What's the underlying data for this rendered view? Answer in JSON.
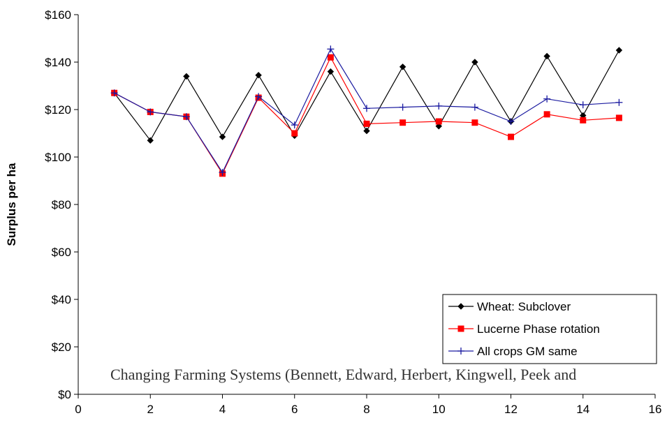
{
  "chart_data": {
    "type": "line",
    "title": "",
    "xlabel": "",
    "ylabel": "Surplus per ha",
    "xlim": [
      0,
      16
    ],
    "ylim": [
      0,
      160
    ],
    "x_ticks": [
      0,
      2,
      4,
      6,
      8,
      10,
      12,
      14,
      16
    ],
    "y_ticks": [
      0,
      20,
      40,
      60,
      80,
      100,
      120,
      140,
      160
    ],
    "y_tick_labels": [
      "$0",
      "$20",
      "$40",
      "$60",
      "$80",
      "$100",
      "$120",
      "$140",
      "$160"
    ],
    "x": [
      1,
      2,
      3,
      4,
      5,
      6,
      7,
      8,
      9,
      10,
      11,
      12,
      13,
      14,
      15
    ],
    "grid": false,
    "legend_position": "bottom-right",
    "series": [
      {
        "name": "Wheat: Subclover",
        "color": "#000000",
        "marker": "diamond",
        "values": [
          127,
          107,
          134,
          108.5,
          134.5,
          109,
          136,
          111,
          138,
          113,
          140,
          115,
          142.5,
          117.5,
          145
        ]
      },
      {
        "name": "Lucerne Phase rotation",
        "color": "#ff0000",
        "marker": "square",
        "values": [
          127,
          119,
          117,
          93,
          125,
          110,
          142,
          114,
          114.5,
          115,
          114.5,
          108.5,
          118,
          115.5,
          116.5
        ]
      },
      {
        "name": "All crops GM same",
        "color": "#1a1aa0",
        "marker": "plus",
        "values": [
          127,
          119,
          117,
          93.5,
          125.5,
          113.5,
          145.5,
          120.5,
          121,
          121.5,
          121,
          115,
          124.5,
          122,
          123
        ]
      }
    ]
  },
  "overlay_caption": "Changing Farming Systems (Bennett, Edward, Herbert, Kingwell, Peek and"
}
